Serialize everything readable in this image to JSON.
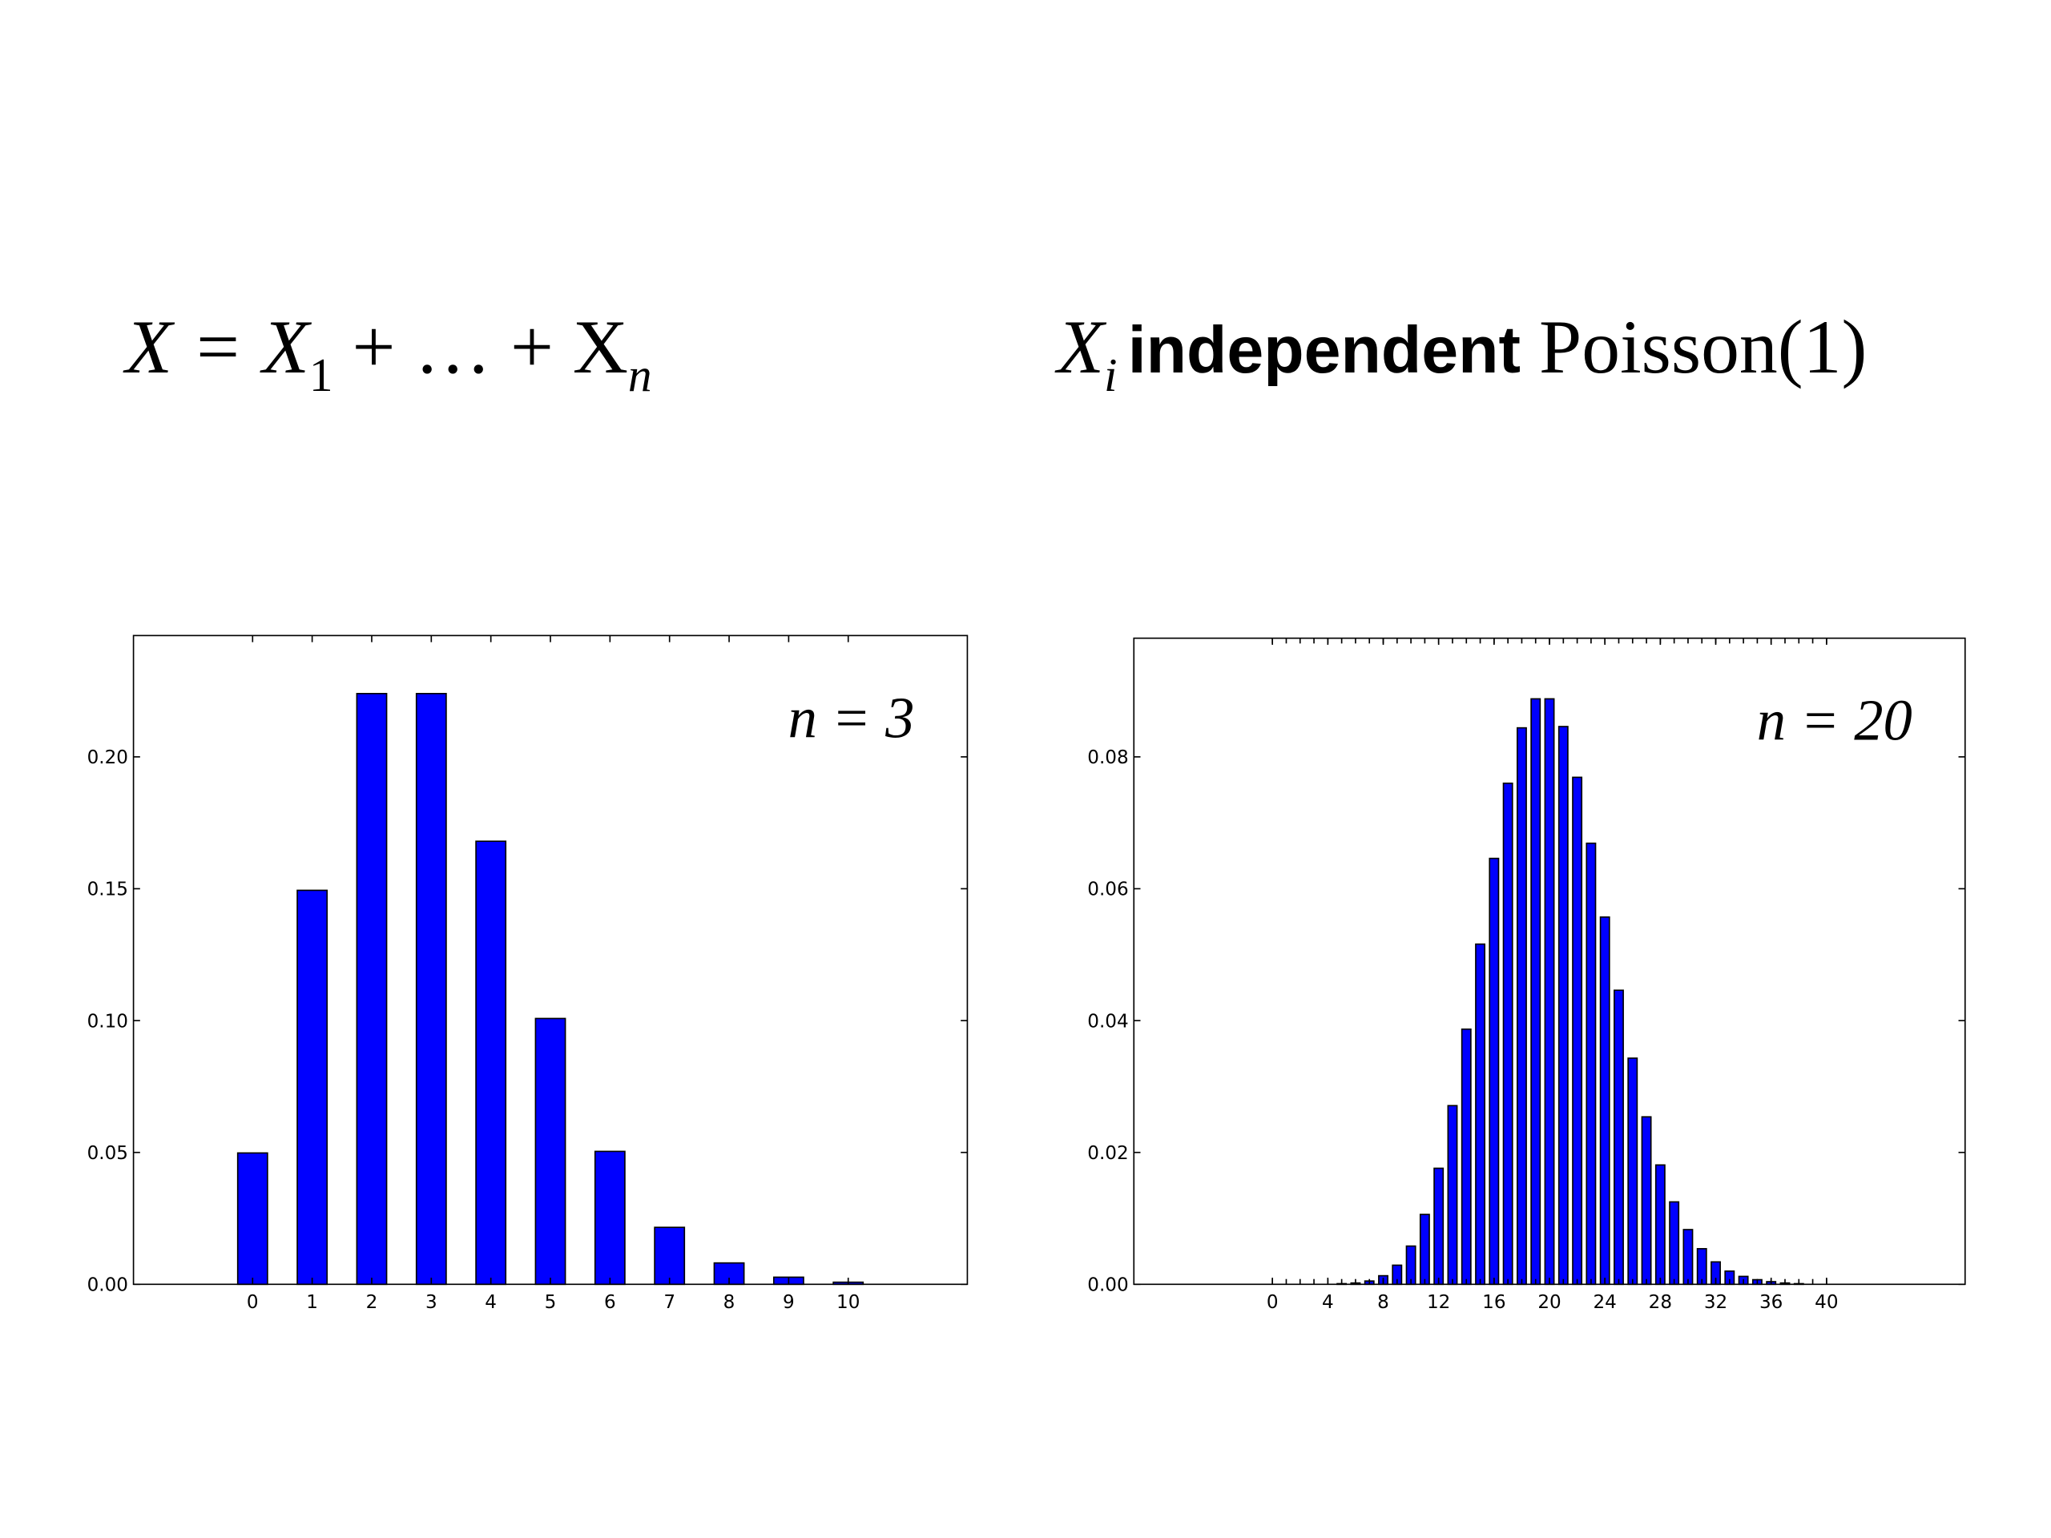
{
  "header": {
    "left_formula": [
      "X = X",
      "1",
      " + … + X",
      "n"
    ],
    "right_formula": [
      "X",
      "i",
      "independent",
      "Poisson(1)"
    ]
  },
  "chart_data": [
    {
      "type": "bar",
      "annotation": "n = 3",
      "color": "#0000ff",
      "x": [
        0,
        1,
        2,
        3,
        4,
        5,
        6,
        7,
        8,
        9,
        10
      ],
      "values": [
        0.0498,
        0.1494,
        0.224,
        0.224,
        0.168,
        0.1008,
        0.0504,
        0.0216,
        0.0081,
        0.0027,
        0.0008
      ],
      "xlim": [
        -2,
        12
      ],
      "xticks": [
        0,
        1,
        2,
        3,
        4,
        5,
        6,
        7,
        8,
        9,
        10
      ],
      "ylim": [
        0,
        0.246
      ],
      "yticks": [
        {
          "value": 0,
          "label": "0.00"
        },
        {
          "value": 0.05,
          "label": "0.05"
        },
        {
          "value": 0.1,
          "label": "0.10"
        },
        {
          "value": 0.15,
          "label": "0.15"
        },
        {
          "value": 0.2,
          "label": "0.20"
        }
      ]
    },
    {
      "type": "bar",
      "annotation": "n = 20",
      "color": "#0000ff",
      "x": [
        0,
        1,
        2,
        3,
        4,
        5,
        6,
        7,
        8,
        9,
        10,
        11,
        12,
        13,
        14,
        15,
        16,
        17,
        18,
        19,
        20,
        21,
        22,
        23,
        24,
        25,
        26,
        27,
        28,
        29,
        30,
        31,
        32,
        33,
        34,
        35,
        36,
        37,
        38,
        39,
        40
      ],
      "values": [
        0,
        0,
        0,
        0,
        0,
        0.0001,
        0.0002,
        0.0005,
        0.0013,
        0.0029,
        0.0058,
        0.0106,
        0.0176,
        0.0271,
        0.0387,
        0.0516,
        0.0646,
        0.076,
        0.0844,
        0.0888,
        0.0888,
        0.0846,
        0.0769,
        0.0669,
        0.0557,
        0.0446,
        0.0343,
        0.0254,
        0.0181,
        0.0125,
        0.0083,
        0.0054,
        0.0034,
        0.002,
        0.0012,
        0.0007,
        0.0004,
        0.0002,
        0.0001,
        0,
        0
      ],
      "xlim": [
        -10,
        50
      ],
      "xticks": [
        0,
        4,
        8,
        12,
        16,
        20,
        24,
        28,
        32,
        36,
        40
      ],
      "ylim": [
        0,
        0.098
      ],
      "yticks": [
        {
          "value": 0,
          "label": "0.00"
        },
        {
          "value": 0.02,
          "label": "0.02"
        },
        {
          "value": 0.04,
          "label": "0.04"
        },
        {
          "value": 0.06,
          "label": "0.06"
        },
        {
          "value": 0.08,
          "label": "0.08"
        }
      ]
    }
  ]
}
